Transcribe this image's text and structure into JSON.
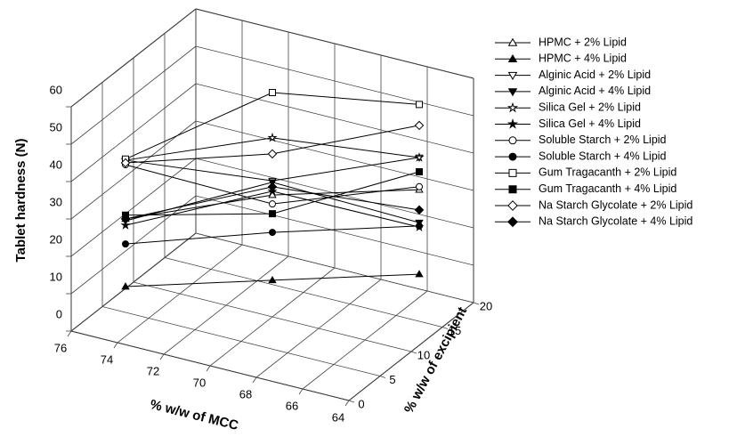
{
  "chart_data": {
    "type": "line3d",
    "xlabel": "% w/w of MCC",
    "ylabel": "% w/w of excipient",
    "zlabel": "Tablet hardness (N)",
    "xlim": [
      76,
      64
    ],
    "xticks": [
      76,
      74,
      72,
      70,
      68,
      66,
      64
    ],
    "ylim": [
      0,
      20
    ],
    "yticks": [
      0,
      5,
      10,
      15,
      20
    ],
    "zlim": [
      0,
      60
    ],
    "zticks": [
      0,
      10,
      20,
      30,
      40,
      50,
      60
    ],
    "grid": true,
    "legend": "right",
    "series": [
      {
        "name": "HPMC + 2% Lipid",
        "color": "#000000",
        "marker": "triangle-up",
        "filled": false,
        "x": [
          75,
          70,
          65
        ],
        "y": [
          5,
          10,
          15
        ],
        "z": [
          25,
          32.6,
          35.2
        ]
      },
      {
        "name": "HPMC + 4% Lipid",
        "color": "#000000",
        "marker": "triangle-up",
        "filled": true,
        "x": [
          75,
          70,
          65
        ],
        "y": [
          5,
          10,
          15
        ],
        "z": [
          6.9,
          9.8,
          12.6
        ]
      },
      {
        "name": "Alginic Acid  + 2% Lipid",
        "color": "#000000",
        "marker": "triangle-down",
        "filled": false,
        "x": [
          75,
          70,
          65
        ],
        "y": [
          5,
          10,
          15
        ],
        "z": [
          40.7,
          36.4,
          43.8
        ]
      },
      {
        "name": "Alginic Acid  + 4% Lipid",
        "color": "#000000",
        "marker": "triangle-down",
        "filled": true,
        "x": [
          75,
          70,
          65
        ],
        "y": [
          5,
          10,
          15
        ],
        "z": [
          24.5,
          36,
          26.4
        ]
      },
      {
        "name": "Silica Gel + 2% Lipid",
        "color": "#000000",
        "marker": "star",
        "filled": false,
        "x": [
          75,
          70,
          65
        ],
        "y": [
          5,
          10,
          15
        ],
        "z": [
          40.7,
          47.9,
          43.8
        ]
      },
      {
        "name": "Silica Gel + 4% Lipid",
        "color": "#000000",
        "marker": "star",
        "filled": true,
        "x": [
          75,
          70,
          65
        ],
        "y": [
          5,
          10,
          15
        ],
        "z": [
          23.3,
          33.6,
          25.2
        ]
      },
      {
        "name": "Soluble Starch + 2% Lipid",
        "color": "#000000",
        "marker": "circle",
        "filled": false,
        "x": [
          75,
          70,
          65
        ],
        "y": [
          5,
          10,
          15
        ],
        "z": [
          39.5,
          30.2,
          36
        ]
      },
      {
        "name": "Soluble Starch + 4% Lipid",
        "color": "#000000",
        "marker": "circle",
        "filled": true,
        "x": [
          75,
          70,
          65
        ],
        "y": [
          5,
          10,
          15
        ],
        "z": [
          18.3,
          22.6,
          25.5
        ]
      },
      {
        "name": "Gum Tragacanth + 2% Lipid",
        "color": "#000000",
        "marker": "square",
        "filled": false,
        "x": [
          75,
          70,
          65
        ],
        "y": [
          5,
          10,
          15
        ],
        "z": [
          41,
          60,
          58
        ]
      },
      {
        "name": "Gum Tragacanth + 4% Lipid",
        "color": "#000000",
        "marker": "square",
        "filled": true,
        "x": [
          75,
          70,
          65
        ],
        "y": [
          5,
          10,
          15
        ],
        "z": [
          26,
          27.6,
          40
        ]
      },
      {
        "name": "Na Starch Glycolate + 2% Lipid",
        "color": "#000000",
        "marker": "diamond",
        "filled": false,
        "x": [
          75,
          70,
          65
        ],
        "y": [
          5,
          10,
          15
        ],
        "z": [
          40,
          43.6,
          52.4
        ]
      },
      {
        "name": "Na Starch Glycolate + 4% Lipid",
        "color": "#000000",
        "marker": "diamond",
        "filled": true,
        "x": [
          75,
          70,
          65
        ],
        "y": [
          5,
          10,
          15
        ],
        "z": [
          25,
          34.8,
          29.8
        ]
      }
    ]
  }
}
